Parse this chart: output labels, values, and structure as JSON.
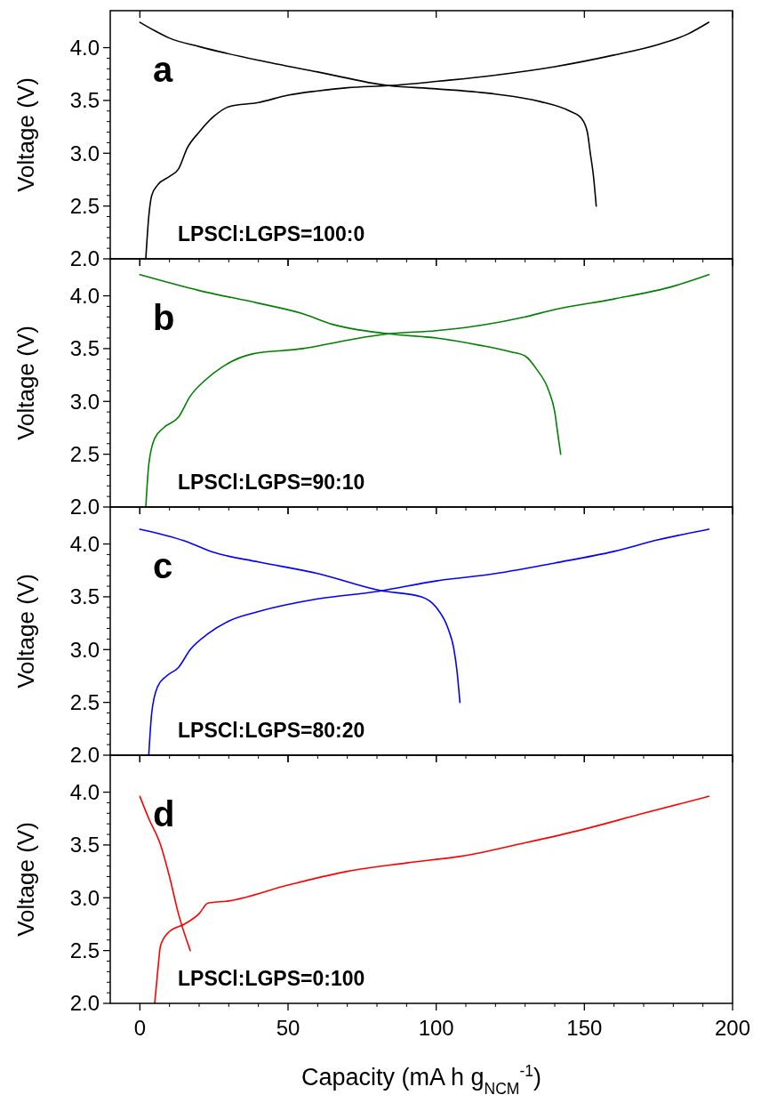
{
  "chart_data": [
    {
      "type": "line",
      "ylabel": "Voltage (V)",
      "annotations": [
        "a",
        "LPSCl:LGPS=100:0"
      ],
      "xlim": [
        -10,
        200
      ],
      "ylim": [
        2,
        4.35
      ],
      "xticks": [
        0,
        50,
        100,
        150,
        200
      ],
      "yticks": [
        {
          "value": 2,
          "label": "2.0"
        },
        {
          "value": 2.5,
          "label": "2.5"
        },
        {
          "value": 3,
          "label": "3.0"
        },
        {
          "value": 3.5,
          "label": "3.5"
        },
        {
          "value": 4,
          "label": "4.0"
        }
      ],
      "tick_labels": "y",
      "line_style": "solid",
      "series": [
        {
          "color": "#000000",
          "x": [
            2,
            3,
            4,
            6,
            10,
            13,
            16,
            20,
            25,
            30,
            40,
            50,
            60,
            70,
            84,
            100,
            120,
            140,
            160,
            175,
            185,
            192
          ],
          "values": [
            2.0,
            2.4,
            2.6,
            2.7,
            2.78,
            2.85,
            3.05,
            3.2,
            3.35,
            3.44,
            3.48,
            3.55,
            3.59,
            3.62,
            3.64,
            3.68,
            3.74,
            3.82,
            3.93,
            4.03,
            4.13,
            4.24
          ]
        },
        {
          "color": "#000000",
          "x": [
            0,
            5,
            10,
            20,
            40,
            60,
            84,
            100,
            120,
            135,
            145,
            149,
            151,
            152,
            153,
            154
          ],
          "values": [
            4.24,
            4.16,
            4.09,
            4.01,
            3.88,
            3.77,
            3.64,
            3.61,
            3.56,
            3.49,
            3.4,
            3.33,
            3.2,
            3.0,
            2.8,
            2.5
          ]
        }
      ]
    },
    {
      "type": "line",
      "ylabel": "Voltage (V)",
      "annotations": [
        "b",
        "LPSCl:LGPS=90:10"
      ],
      "xlim": [
        -10,
        200
      ],
      "ylim": [
        2,
        4.35
      ],
      "xticks": [
        0,
        50,
        100,
        150,
        200
      ],
      "yticks": [
        {
          "value": 2,
          "label": "2.0"
        },
        {
          "value": 2.5,
          "label": "2.5"
        },
        {
          "value": 3,
          "label": "3.0"
        },
        {
          "value": 3.5,
          "label": "3.5"
        },
        {
          "value": 4,
          "label": "4.0"
        }
      ],
      "tick_labels": "y",
      "line_style": "solid",
      "series": [
        {
          "color": "#008000",
          "x": [
            2,
            3,
            5,
            8,
            13,
            17,
            22,
            28,
            38,
            55,
            70,
            84,
            100,
            115,
            130,
            140,
            160,
            180,
            192
          ],
          "values": [
            2.0,
            2.4,
            2.65,
            2.75,
            2.85,
            3.05,
            3.2,
            3.33,
            3.45,
            3.5,
            3.58,
            3.64,
            3.67,
            3.72,
            3.8,
            3.87,
            3.97,
            4.09,
            4.2
          ]
        },
        {
          "color": "#008000",
          "x": [
            0,
            20,
            40,
            55,
            65,
            84,
            100,
            115,
            125,
            130,
            134,
            138,
            140,
            141,
            142
          ],
          "values": [
            4.2,
            4.05,
            3.93,
            3.83,
            3.73,
            3.64,
            3.6,
            3.53,
            3.47,
            3.43,
            3.3,
            3.1,
            2.9,
            2.7,
            2.5
          ]
        }
      ]
    },
    {
      "type": "line",
      "ylabel": "Voltage (V)",
      "annotations": [
        "c",
        "LPSCl:LGPS=80:20"
      ],
      "xlim": [
        -10,
        200
      ],
      "ylim": [
        2,
        4.35
      ],
      "xticks": [
        0,
        50,
        100,
        150,
        200
      ],
      "yticks": [
        {
          "value": 2,
          "label": "2.0"
        },
        {
          "value": 2.5,
          "label": "2.5"
        },
        {
          "value": 3,
          "label": "3.0"
        },
        {
          "value": 3.5,
          "label": "3.5"
        },
        {
          "value": 4,
          "label": "4.0"
        }
      ],
      "tick_labels": "y",
      "line_style": "solid",
      "series": [
        {
          "color": "#0000ff",
          "x": [
            3,
            4,
            6,
            9,
            13,
            17,
            23,
            30,
            40,
            60,
            80,
            100,
            120,
            140,
            160,
            175,
            192
          ],
          "values": [
            2.0,
            2.4,
            2.65,
            2.75,
            2.83,
            3.0,
            3.15,
            3.27,
            3.36,
            3.48,
            3.55,
            3.65,
            3.72,
            3.82,
            3.93,
            4.04,
            4.14
          ]
        },
        {
          "color": "#0000ff",
          "x": [
            0,
            15,
            25,
            40,
            60,
            81,
            95,
            100,
            104,
            106,
            107,
            108
          ],
          "values": [
            4.14,
            4.03,
            3.92,
            3.83,
            3.72,
            3.56,
            3.5,
            3.4,
            3.2,
            3.0,
            2.8,
            2.5
          ]
        }
      ]
    },
    {
      "type": "line",
      "xlabel": "Capacity (mA h g$_{NCM}$$^{-1}$)",
      "ylabel": "Voltage (V)",
      "annotations": [
        "d",
        "LPSCl:LGPS=0:100"
      ],
      "xlim": [
        -10,
        200
      ],
      "ylim": [
        2,
        4.35
      ],
      "xticks": [
        0,
        50,
        100,
        150,
        200
      ],
      "yticks": [
        {
          "value": 2,
          "label": "2.0"
        },
        {
          "value": 2.5,
          "label": "2.5"
        },
        {
          "value": 3,
          "label": "3.0"
        },
        {
          "value": 3.5,
          "label": "3.5"
        },
        {
          "value": 4,
          "label": "4.0"
        }
      ],
      "line_style": "solid",
      "series": [
        {
          "color": "#ff0000",
          "x": [
            5,
            6,
            7,
            10,
            15,
            20,
            23,
            30,
            50,
            70,
            90,
            110,
            130,
            150,
            170,
            192
          ],
          "values": [
            2.0,
            2.3,
            2.55,
            2.68,
            2.75,
            2.85,
            2.95,
            2.97,
            3.12,
            3.25,
            3.33,
            3.4,
            3.52,
            3.65,
            3.8,
            3.96
          ]
        },
        {
          "color": "#ff0000",
          "x": [
            0,
            3,
            7,
            10,
            13,
            17
          ],
          "values": [
            3.96,
            3.75,
            3.5,
            3.2,
            2.85,
            2.5
          ]
        }
      ]
    }
  ]
}
